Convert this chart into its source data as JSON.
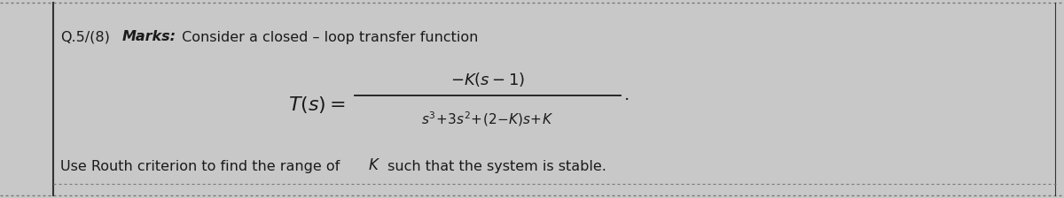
{
  "bg_color": "#c8c8c8",
  "box_bg": "#e8e4de",
  "text_color": "#1a1a1a",
  "dotted_line_color": "#777777",
  "left_bar_color": "#333333",
  "figsize": [
    12.0,
    2.24
  ],
  "dpi": 100,
  "title_q": "Q.5/(8)",
  "title_marks": "Marks:",
  "title_rest": " Consider a closed – loop transfer function",
  "bottom_text1": "Use Routh criterion to find the range of  ",
  "bottom_italic": "K",
  "bottom_text2": " such that the system is stable."
}
